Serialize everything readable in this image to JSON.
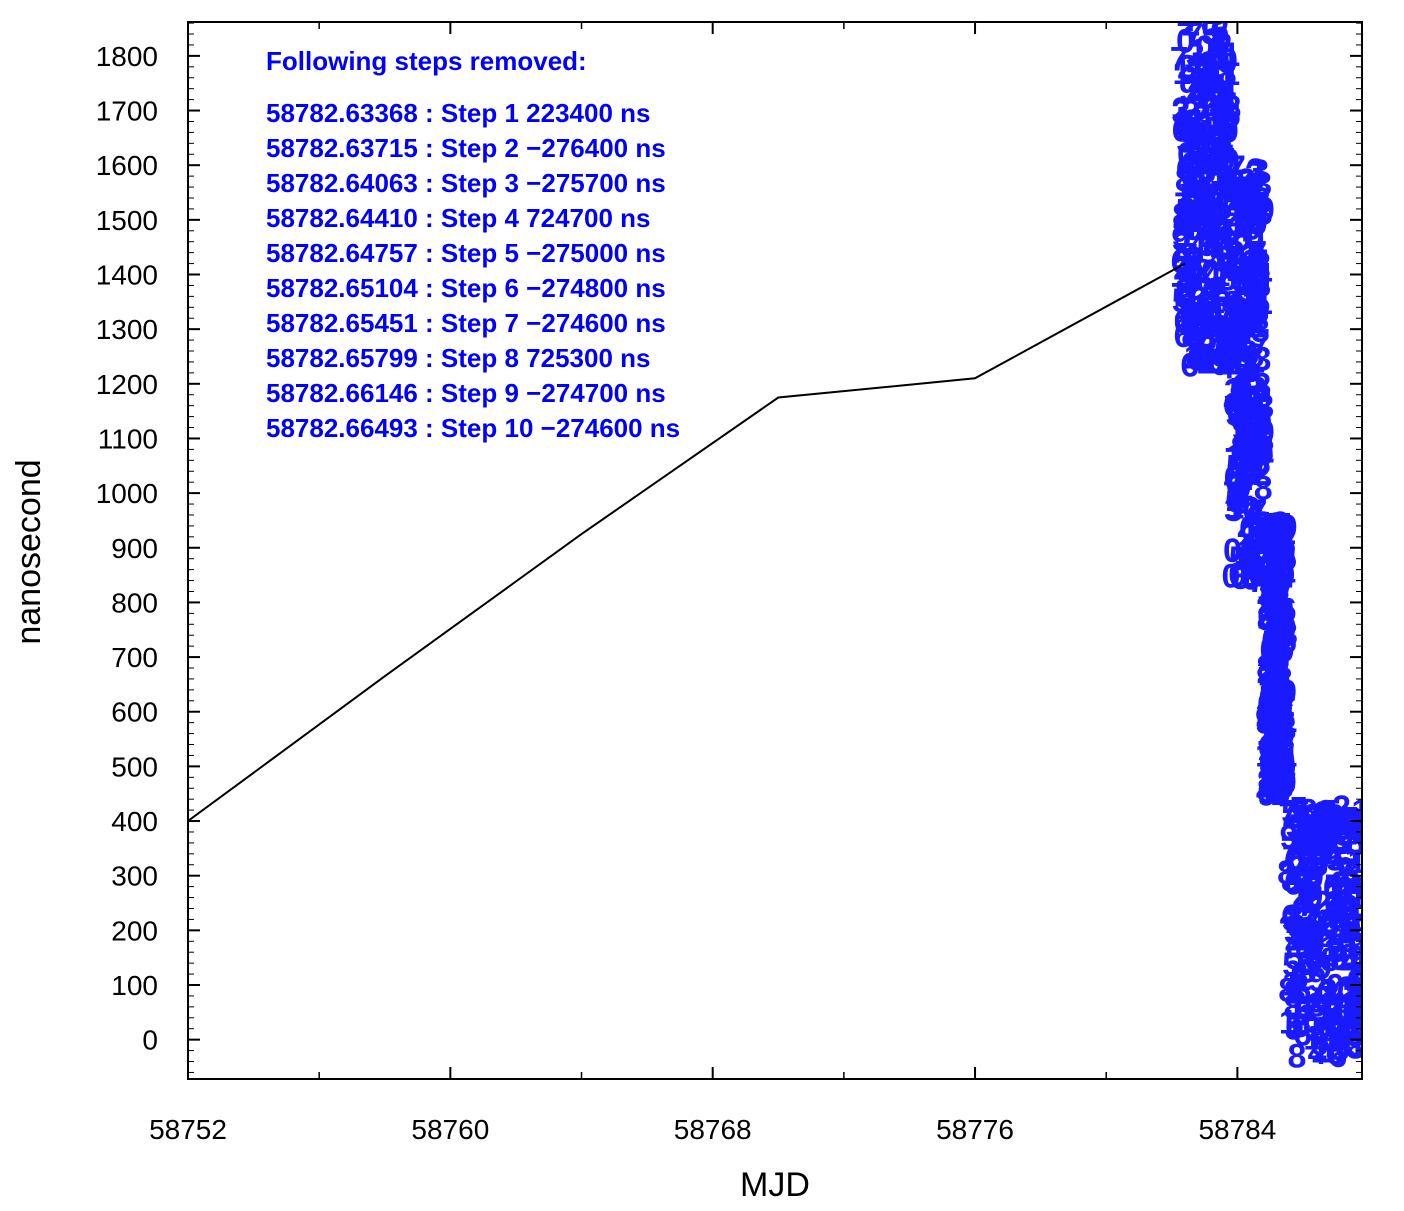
{
  "chart_data": {
    "type": "line",
    "xlabel": "MJD",
    "ylabel": "nanosecond",
    "xlim": [
      58752,
      58787.8
    ],
    "ylim": [
      -72,
      1862
    ],
    "x_ticks": [
      58752,
      58760,
      58768,
      58776,
      58784
    ],
    "y_ticks": [
      0,
      100,
      200,
      300,
      400,
      500,
      600,
      700,
      800,
      900,
      1000,
      1100,
      1200,
      1300,
      1400,
      1500,
      1600,
      1700,
      1800
    ],
    "series": [
      {
        "kind": "line",
        "color": "#000000",
        "x": [
          58752,
          58758,
          58764,
          58770,
          58776,
          58782.4
        ],
        "y": [
          400,
          665,
          925,
          1175,
          1210,
          1420
        ]
      },
      {
        "kind": "digit-markers",
        "color": "#1a1aff",
        "segments": [
          {
            "x_from": 58782.2,
            "x_to": 58783.8,
            "y_center": 1550,
            "spread": 320
          },
          {
            "x_from": 58783.8,
            "x_to": 58784.8,
            "y_center": 1220,
            "spread": 380
          },
          {
            "x_from": 58784.8,
            "x_to": 58785.5,
            "y_center": 700,
            "spread": 250
          },
          {
            "x_from": 58785.5,
            "x_to": 58787.8,
            "y_center": 200,
            "spread": 230
          }
        ]
      }
    ],
    "annotation": {
      "title": "Following steps removed:",
      "lines": [
        "58782.63368 : Step 1 223400 ns",
        "58782.63715 : Step 2 −276400 ns",
        "58782.64063 : Step 3 −275700 ns",
        "58782.64410 : Step 4 724700 ns",
        "58782.64757 : Step 5 −275000 ns",
        "58782.65104 : Step 6 −274800 ns",
        "58782.65451 : Step 7 −274600 ns",
        "58782.65799 : Step 8 725300 ns",
        "58782.66146 : Step 9 −274700 ns",
        "58782.66493 : Step 10 −274600 ns"
      ]
    },
    "grid": false,
    "colors": {
      "line": "#000000",
      "annotation": "#0000ff",
      "markers": "#1a1aff"
    }
  }
}
